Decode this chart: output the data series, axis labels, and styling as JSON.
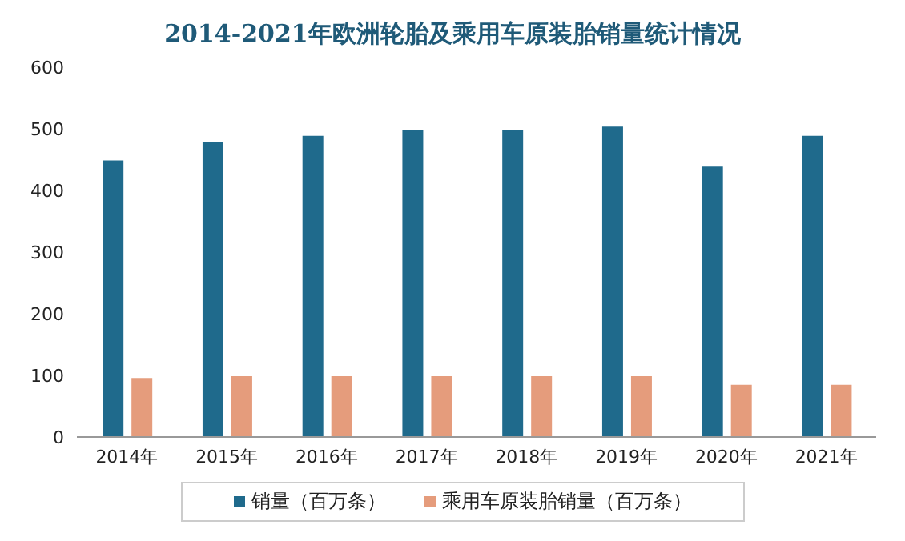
{
  "chart_data": {
    "type": "bar",
    "title": "2014-2021年欧洲轮胎及乘用车原装胎销量统计情况",
    "categories": [
      "2014年",
      "2015年",
      "2016年",
      "2017年",
      "2018年",
      "2019年",
      "2020年",
      "2021年"
    ],
    "series": [
      {
        "name": "销量（百万条）",
        "color": "#1f6a8c",
        "values": [
          450,
          480,
          490,
          500,
          500,
          505,
          440,
          490
        ]
      },
      {
        "name": "乘用车原装胎销量（百万条）",
        "color": "#e59c7c",
        "values": [
          97,
          100,
          100,
          100,
          100,
          100,
          86,
          86
        ]
      }
    ],
    "ylim": [
      0,
      600
    ],
    "yticks": [
      0,
      100,
      200,
      300,
      400,
      500,
      600
    ],
    "grid": false,
    "legend": "bottom"
  }
}
